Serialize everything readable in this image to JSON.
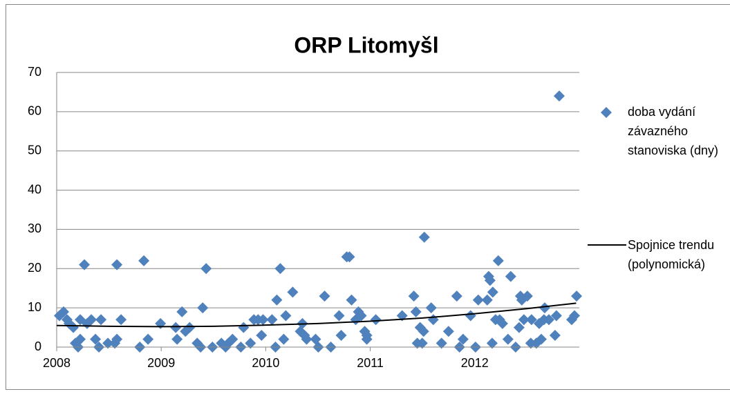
{
  "chart_data": {
    "type": "scatter",
    "title": "ORP Litomyšl",
    "xlim": [
      2008,
      2013
    ],
    "xticks": [
      2008,
      2009,
      2010,
      2011,
      2012
    ],
    "ylim": [
      0,
      70
    ],
    "yticks": [
      0,
      10,
      20,
      30,
      40,
      50,
      60,
      70
    ],
    "grid": true,
    "legend": "right",
    "series": [
      {
        "name": "doba vydání závazného stanoviska (dny)",
        "color": "#4f81bd",
        "marker": "diamond",
        "x": [
          2008.026,
          2008.066,
          2008.099,
          2008.119,
          2008.159,
          2008.179,
          2008.205,
          2008.225,
          2008.225,
          2008.265,
          2008.291,
          2008.331,
          2008.371,
          2008.404,
          2008.424,
          2008.49,
          2008.556,
          2008.576,
          2008.576,
          2008.616,
          2008.795,
          2008.834,
          2008.874,
          2008.993,
          2009.139,
          2009.152,
          2009.199,
          2009.232,
          2009.272,
          2009.344,
          2009.377,
          2009.397,
          2009.43,
          2009.49,
          2009.576,
          2009.616,
          2009.642,
          2009.682,
          2009.762,
          2009.788,
          2009.854,
          2009.887,
          2009.927,
          2009.96,
          2009.974,
          2010.06,
          2010.093,
          2010.106,
          2010.139,
          2010.172,
          2010.192,
          2010.258,
          2010.331,
          2010.351,
          2010.371,
          2010.391,
          2010.477,
          2010.503,
          2010.563,
          2010.623,
          2010.702,
          2010.722,
          2010.775,
          2010.801,
          2010.821,
          2010.861,
          2010.887,
          2010.914,
          2010.947,
          2010.967,
          2010.967,
          2011.053,
          2011.305,
          2011.417,
          2011.437,
          2011.45,
          2011.477,
          2011.497,
          2011.51,
          2011.517,
          2011.583,
          2011.603,
          2011.682,
          2011.749,
          2011.828,
          2011.854,
          2011.888,
          2011.96,
          2012.007,
          2012.033,
          2012.119,
          2012.133,
          2012.146,
          2012.166,
          2012.172,
          2012.199,
          2012.225,
          2012.238,
          2012.265,
          2012.318,
          2012.344,
          2012.391,
          2012.424,
          2012.437,
          2012.45,
          2012.47,
          2012.503,
          2012.536,
          2012.543,
          2012.589,
          2012.616,
          2012.636,
          2012.662,
          2012.669,
          2012.709,
          2012.768,
          2012.781,
          2012.808,
          2012.927,
          2012.954,
          2012.974
        ],
        "values": [
          8,
          9,
          7,
          6,
          5,
          1,
          0,
          2,
          7,
          21,
          6,
          7,
          2,
          0,
          7,
          1,
          1,
          21,
          2,
          7,
          0,
          22,
          2,
          6,
          5,
          2,
          9,
          4,
          5,
          1,
          0,
          10,
          20,
          0,
          1,
          0,
          1,
          2,
          0,
          5,
          1,
          7,
          7,
          3,
          7,
          7,
          0,
          12,
          20,
          2,
          8,
          14,
          4,
          6,
          3,
          2,
          2,
          0,
          13,
          0,
          8,
          3,
          23,
          23,
          12,
          7,
          9,
          8,
          4,
          2,
          3,
          7,
          8,
          13,
          9,
          1,
          5,
          1,
          4,
          28,
          10,
          7,
          1,
          4,
          13,
          0,
          2,
          8,
          0,
          12,
          12,
          18,
          17,
          1,
          14,
          7,
          22,
          7,
          6,
          2,
          18,
          0,
          5,
          13,
          12,
          7,
          13,
          1,
          7,
          1,
          6,
          2,
          7,
          10,
          7,
          3,
          8,
          64,
          7,
          8,
          13
        ]
      },
      {
        "name": "Spojnice trendu (polynomická)",
        "color": "#000000",
        "marker": "line",
        "x": [
          2008,
          2008.5,
          2009,
          2009.5,
          2010,
          2010.5,
          2011,
          2011.5,
          2012,
          2012.5,
          2012.97
        ],
        "values": [
          5.5,
          5.3,
          5.2,
          5.3,
          5.6,
          6.0,
          6.6,
          7.4,
          8.5,
          9.8,
          11.2
        ]
      }
    ]
  }
}
